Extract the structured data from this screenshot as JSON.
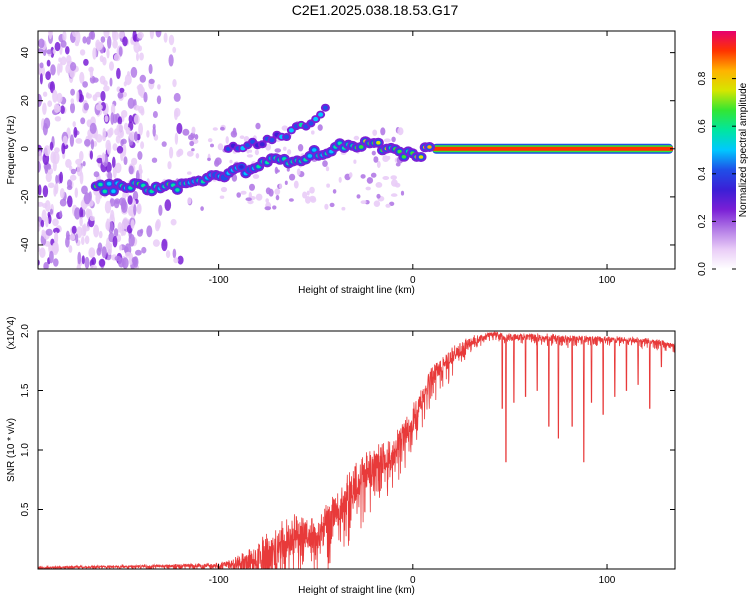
{
  "title": "C2E1.2025.038.18.53.G17",
  "colors": {
    "snr_line": "#e83a3a",
    "palette": [
      "#ffffff",
      "#e9ccf7",
      "#b27ae6",
      "#7a1fd6",
      "#3b1fd6",
      "#1f4fe8",
      "#00c8ff",
      "#00e6a0",
      "#33e633",
      "#d6e600",
      "#ffb300",
      "#ff3300",
      "#e6006e"
    ]
  },
  "chart_data": [
    {
      "type": "heatmap",
      "title": "C2E1.2025.038.18.53.G17",
      "xlabel": "Height of straight line (km)",
      "ylabel": "Frequency (Hz)",
      "xlim": [
        -193,
        135
      ],
      "ylim": [
        -50,
        49
      ],
      "xticks": [
        -100,
        0,
        100
      ],
      "xtick_labels": [
        "-100",
        "0",
        "100"
      ],
      "yticks": [
        -40,
        -20,
        0,
        20,
        40
      ],
      "ytick_labels": [
        "-40",
        "-20",
        "0",
        "20",
        "40"
      ],
      "colorbar": {
        "label": "Normalized spectral amplitude",
        "range": [
          0,
          1
        ],
        "ticks": [
          0.0,
          0.2,
          0.4,
          0.6,
          0.8
        ],
        "tick_labels": [
          "0.0",
          "0.2",
          "0.4",
          "0.6",
          "0.8"
        ]
      },
      "ridge": [
        {
          "x": -163,
          "y": -16,
          "amp": 0.5
        },
        {
          "x": -150,
          "y": -16,
          "amp": 0.45
        },
        {
          "x": -138,
          "y": -16,
          "amp": 0.55
        },
        {
          "x": -125,
          "y": -16,
          "amp": 0.5
        },
        {
          "x": -112,
          "y": -14,
          "amp": 0.45
        },
        {
          "x": -100,
          "y": -11,
          "amp": 0.4
        },
        {
          "x": -88,
          "y": -9,
          "amp": 0.35
        },
        {
          "x": -80,
          "y": -7,
          "amp": 0.45
        },
        {
          "x": -70,
          "y": -5,
          "amp": 0.5
        },
        {
          "x": -60,
          "y": -4,
          "amp": 0.5
        },
        {
          "x": -50,
          "y": -2,
          "amp": 0.45
        },
        {
          "x": -40,
          "y": 0,
          "amp": 0.5
        },
        {
          "x": -33,
          "y": 2,
          "amp": 0.55
        },
        {
          "x": -25,
          "y": 2,
          "amp": 0.6
        },
        {
          "x": -15,
          "y": 1,
          "amp": 0.65
        },
        {
          "x": -5,
          "y": -2,
          "amp": 0.55
        },
        {
          "x": 0,
          "y": -3,
          "amp": 0.6
        },
        {
          "x": 10,
          "y": 0,
          "amp": 0.9
        },
        {
          "x": 40,
          "y": 0,
          "amp": 0.95
        },
        {
          "x": 80,
          "y": 0,
          "amp": 0.95
        },
        {
          "x": 134,
          "y": 0,
          "amp": 0.95
        }
      ],
      "upper_branch": [
        {
          "x": -95,
          "y": 0
        },
        {
          "x": -75,
          "y": 3
        },
        {
          "x": -60,
          "y": 8
        },
        {
          "x": -50,
          "y": 13
        },
        {
          "x": -43,
          "y": 18
        }
      ],
      "noise_region_x": [
        -193,
        -118
      ]
    },
    {
      "type": "line",
      "xlabel": "Height of straight line (km)",
      "ylabel": "SNR (10 * v/v)",
      "y_multiplier": "(x10^4)",
      "xlim": [
        -193,
        135
      ],
      "ylim": [
        0,
        2.0
      ],
      "xticks": [
        -100,
        0,
        100
      ],
      "xtick_labels": [
        "-100",
        "0",
        "100"
      ],
      "yticks": [
        0.5,
        1.0,
        1.5,
        2.0
      ],
      "ytick_labels": [
        "0.5",
        "1.0",
        "1.5",
        "2.0"
      ],
      "envelope_x": [
        -193,
        -150,
        -120,
        -100,
        -90,
        -80,
        -70,
        -60,
        -50,
        -40,
        -30,
        -20,
        -10,
        0,
        10,
        20,
        30,
        40,
        50,
        60,
        70,
        80,
        90,
        100,
        110,
        120,
        135
      ],
      "envelope_y": [
        0.02,
        0.03,
        0.04,
        0.05,
        0.1,
        0.2,
        0.35,
        0.45,
        0.4,
        0.6,
        0.85,
        1.0,
        1.1,
        1.35,
        1.7,
        1.85,
        1.95,
        2.0,
        1.97,
        1.98,
        1.97,
        1.96,
        1.96,
        1.95,
        1.95,
        1.94,
        1.9
      ],
      "noise_amp": [
        0.02,
        0.02,
        0.03,
        0.05,
        0.12,
        0.3,
        0.4,
        0.35,
        0.3,
        0.35,
        0.35,
        0.3,
        0.3,
        0.25,
        0.2,
        0.15,
        0.1,
        0.05,
        0.06,
        0.06,
        0.06,
        0.06,
        0.05,
        0.05,
        0.05,
        0.05,
        0.05
      ],
      "dips": [
        {
          "x": 46,
          "y": 1.35
        },
        {
          "x": 48,
          "y": 0.9
        },
        {
          "x": 52,
          "y": 1.4
        },
        {
          "x": 58,
          "y": 1.45
        },
        {
          "x": 64,
          "y": 1.5
        },
        {
          "x": 70,
          "y": 1.2
        },
        {
          "x": 75,
          "y": 1.1
        },
        {
          "x": 82,
          "y": 1.2
        },
        {
          "x": 88,
          "y": 0.9
        },
        {
          "x": 92,
          "y": 1.4
        },
        {
          "x": 98,
          "y": 1.3
        },
        {
          "x": 104,
          "y": 1.45
        },
        {
          "x": 110,
          "y": 1.5
        },
        {
          "x": 116,
          "y": 1.55
        },
        {
          "x": 122,
          "y": 1.35
        },
        {
          "x": 128,
          "y": 1.7
        }
      ]
    }
  ]
}
